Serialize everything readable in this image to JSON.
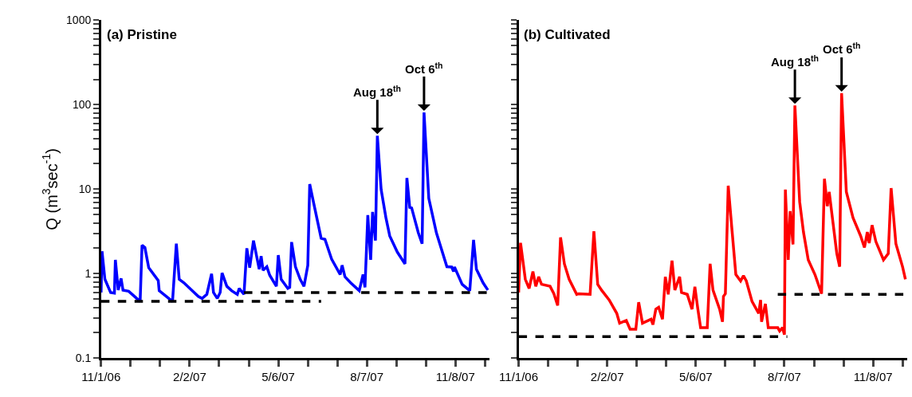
{
  "chart_data": [
    {
      "type": "line",
      "title": "(a) Pristine",
      "ylabel": "Q (m$^{3}$sec$^{-1}$)",
      "log": "y",
      "marker": "none",
      "xlim": [
        "2006-11-01",
        "2007-12-14"
      ],
      "ylim": [
        0.1,
        1000
      ],
      "xticks": [
        {
          "value": "2006-11-01",
          "label": "11/1/06"
        },
        {
          "value": "2006-12-02",
          "label": null
        },
        {
          "value": "2007-01-02",
          "label": null
        },
        {
          "value": "2007-02-02",
          "label": "2/2/07"
        },
        {
          "value": "2007-03-05",
          "label": null
        },
        {
          "value": "2007-04-05",
          "label": null
        },
        {
          "value": "2007-05-06",
          "label": "5/6/07"
        },
        {
          "value": "2007-06-06",
          "label": null
        },
        {
          "value": "2007-07-07",
          "label": null
        },
        {
          "value": "2007-08-07",
          "label": "8/7/07"
        },
        {
          "value": "2007-09-07",
          "label": null
        },
        {
          "value": "2007-10-08",
          "label": null
        },
        {
          "value": "2007-11-08",
          "label": "11/8/07"
        },
        {
          "value": "2007-12-09",
          "label": null
        }
      ],
      "yticks": [
        0.1,
        {
          "value": 0.2,
          "label": null
        },
        {
          "value": 0.3,
          "label": null
        },
        {
          "value": 0.4,
          "label": null
        },
        {
          "value": 0.5,
          "label": null
        },
        {
          "value": 0.6,
          "label": null
        },
        {
          "value": 0.7,
          "label": null
        },
        {
          "value": 0.8,
          "label": null
        },
        {
          "value": 0.9,
          "label": null
        },
        1,
        {
          "value": 2,
          "label": null
        },
        {
          "value": 3,
          "label": null
        },
        {
          "value": 4,
          "label": null
        },
        {
          "value": 5,
          "label": null
        },
        {
          "value": 6,
          "label": null
        },
        {
          "value": 7,
          "label": null
        },
        {
          "value": 8,
          "label": null
        },
        {
          "value": 9,
          "label": null
        },
        10,
        {
          "value": 20,
          "label": null
        },
        {
          "value": 30,
          "label": null
        },
        {
          "value": 40,
          "label": null
        },
        {
          "value": 50,
          "label": null
        },
        {
          "value": 60,
          "label": null
        },
        {
          "value": 70,
          "label": null
        },
        {
          "value": 80,
          "label": null
        },
        {
          "value": 90,
          "label": null
        },
        100,
        {
          "value": 200,
          "label": null
        },
        {
          "value": 300,
          "label": null
        },
        {
          "value": 400,
          "label": null
        },
        {
          "value": 500,
          "label": null
        },
        {
          "value": 600,
          "label": null
        },
        {
          "value": 700,
          "label": null
        },
        {
          "value": 800,
          "label": null
        },
        {
          "value": 900,
          "label": null
        },
        1000
      ],
      "annotations": [
        {
          "text": "Aug 18$^{th}$",
          "x": "2007-08-18",
          "y": 43
        },
        {
          "text": "Oct 6$^{th}$",
          "x": "2007-10-06",
          "y": 81
        }
      ],
      "series": [
        {
          "color": "#0000ff",
          "line_style": "solid",
          "x": [
            "2006-11-01",
            "2006-11-02",
            "2006-11-05",
            "2006-11-11",
            "2006-11-15",
            "2006-11-16",
            "2006-11-19",
            "2006-11-22",
            "2006-11-24",
            "2006-11-30",
            "2006-12-12",
            "2006-12-14",
            "2006-12-17",
            "2006-12-21",
            "2006-12-31",
            "2007-01-01",
            "2007-01-15",
            "2007-01-19",
            "2007-01-22",
            "2007-01-27",
            "2007-02-11",
            "2007-02-15",
            "2007-02-20",
            "2007-02-25",
            "2007-02-27",
            "2007-03-03",
            "2007-03-06",
            "2007-03-08",
            "2007-03-13",
            "2007-03-18",
            "2007-03-24",
            "2007-03-26",
            "2007-03-31",
            "2007-04-03",
            "2007-04-06",
            "2007-04-10",
            "2007-04-16",
            "2007-04-18",
            "2007-04-20",
            "2007-04-24",
            "2007-04-27",
            "2007-05-04",
            "2007-05-06",
            "2007-05-09",
            "2007-05-16",
            "2007-05-18",
            "2007-05-20",
            "2007-05-24",
            "2007-05-29",
            "2007-06-02",
            "2007-06-06",
            "2007-06-08",
            "2007-06-12",
            "2007-06-20",
            "2007-06-24",
            "2007-07-01",
            "2007-07-10",
            "2007-07-12",
            "2007-07-15",
            "2007-07-21",
            "2007-07-30",
            "2007-08-03",
            "2007-08-05",
            "2007-08-08",
            "2007-08-11",
            "2007-08-13",
            "2007-08-16",
            "2007-08-18",
            "2007-08-22",
            "2007-08-27",
            "2007-08-31",
            "2007-09-08",
            "2007-09-16",
            "2007-09-18",
            "2007-09-21",
            "2007-09-23",
            "2007-09-30",
            "2007-10-04",
            "2007-10-06",
            "2007-10-11",
            "2007-10-19",
            "2007-10-30",
            "2007-11-04",
            "2007-11-06",
            "2007-11-07",
            "2007-11-15",
            "2007-11-23",
            "2007-11-27",
            "2007-11-30",
            "2007-12-07",
            "2007-12-12"
          ],
          "values": [
            0.6,
            1.84,
            0.86,
            0.6,
            0.59,
            1.46,
            0.64,
            0.88,
            0.64,
            0.62,
            0.47,
            2.18,
            2.04,
            1.18,
            0.83,
            0.63,
            0.47,
            2.27,
            0.86,
            0.78,
            0.54,
            0.51,
            0.57,
            1.0,
            0.6,
            0.51,
            0.6,
            1.02,
            0.71,
            0.63,
            0.57,
            0.67,
            0.57,
            2.0,
            1.18,
            2.47,
            1.13,
            1.62,
            1.1,
            1.21,
            0.96,
            0.71,
            1.66,
            0.86,
            0.67,
            0.69,
            2.37,
            1.21,
            0.86,
            0.71,
            1.26,
            11.5,
            7.0,
            2.63,
            2.55,
            1.49,
            0.98,
            1.26,
            0.92,
            0.78,
            0.63,
            0.98,
            0.69,
            4.94,
            1.46,
            5.38,
            2.47,
            43,
            9.9,
            4.6,
            2.8,
            1.8,
            1.31,
            13.6,
            6.1,
            6.0,
            3.05,
            2.27,
            81,
            7.8,
            3.05,
            1.21,
            1.2,
            1.06,
            1.2,
            0.75,
            0.63,
            2.52,
            1.13,
            0.78,
            0.64
          ]
        },
        {
          "color": "#000000",
          "line_style": "dashed",
          "x": [
            "2006-11-01",
            "2007-06-20"
          ],
          "values": [
            0.47,
            0.47
          ]
        },
        {
          "color": "#000000",
          "line_style": "dashed",
          "x": [
            "2007-03-31",
            "2007-12-12"
          ],
          "values": [
            0.6,
            0.6
          ]
        }
      ]
    },
    {
      "type": "line",
      "title": "(b) Cultivated",
      "log": "y",
      "marker": "none",
      "tick_labels": "x",
      "xlim": [
        "2006-11-01",
        "2007-12-14"
      ],
      "ylim": [
        0.1,
        1000
      ],
      "xticks": [
        {
          "value": "2006-11-01",
          "label": "11/1/06"
        },
        {
          "value": "2006-12-02",
          "label": null
        },
        {
          "value": "2007-01-02",
          "label": null
        },
        {
          "value": "2007-02-02",
          "label": "2/2/07"
        },
        {
          "value": "2007-03-05",
          "label": null
        },
        {
          "value": "2007-04-05",
          "label": null
        },
        {
          "value": "2007-05-06",
          "label": "5/6/07"
        },
        {
          "value": "2007-06-06",
          "label": null
        },
        {
          "value": "2007-07-07",
          "label": null
        },
        {
          "value": "2007-08-07",
          "label": "8/7/07"
        },
        {
          "value": "2007-09-07",
          "label": null
        },
        {
          "value": "2007-10-08",
          "label": null
        },
        {
          "value": "2007-11-08",
          "label": "11/8/07"
        },
        {
          "value": "2007-12-09",
          "label": null
        }
      ],
      "yticks": [
        0.1,
        {
          "value": 0.2,
          "label": null
        },
        {
          "value": 0.3,
          "label": null
        },
        {
          "value": 0.4,
          "label": null
        },
        {
          "value": 0.5,
          "label": null
        },
        {
          "value": 0.6,
          "label": null
        },
        {
          "value": 0.7,
          "label": null
        },
        {
          "value": 0.8,
          "label": null
        },
        {
          "value": 0.9,
          "label": null
        },
        1,
        {
          "value": 2,
          "label": null
        },
        {
          "value": 3,
          "label": null
        },
        {
          "value": 4,
          "label": null
        },
        {
          "value": 5,
          "label": null
        },
        {
          "value": 6,
          "label": null
        },
        {
          "value": 7,
          "label": null
        },
        {
          "value": 8,
          "label": null
        },
        {
          "value": 9,
          "label": null
        },
        10,
        {
          "value": 20,
          "label": null
        },
        {
          "value": 30,
          "label": null
        },
        {
          "value": 40,
          "label": null
        },
        {
          "value": 50,
          "label": null
        },
        {
          "value": 60,
          "label": null
        },
        {
          "value": 70,
          "label": null
        },
        {
          "value": 80,
          "label": null
        },
        {
          "value": 90,
          "label": null
        },
        100,
        {
          "value": 200,
          "label": null
        },
        {
          "value": 300,
          "label": null
        },
        {
          "value": 400,
          "label": null
        },
        {
          "value": 500,
          "label": null
        },
        {
          "value": 600,
          "label": null
        },
        {
          "value": 700,
          "label": null
        },
        {
          "value": 800,
          "label": null
        },
        {
          "value": 900,
          "label": null
        },
        1000
      ],
      "annotations": [
        {
          "text": "Aug 18$^{th}$",
          "x": "2007-08-18",
          "y": 98
        },
        {
          "text": "Oct 6$^{th}$",
          "x": "2007-10-06",
          "y": 137
        }
      ],
      "series": [
        {
          "color": "#ff0000",
          "line_style": "solid",
          "x": [
            "2006-11-01",
            "2006-11-03",
            "2006-11-08",
            "2006-11-12",
            "2006-11-16",
            "2006-11-19",
            "2006-11-22",
            "2006-11-25",
            "2006-12-04",
            "2006-12-08",
            "2006-12-12",
            "2006-12-15",
            "2006-12-19",
            "2006-12-24",
            "2007-01-01",
            "2007-01-03",
            "2007-01-15",
            "2007-01-19",
            "2007-01-23",
            "2007-01-27",
            "2007-02-04",
            "2007-02-12",
            "2007-02-15",
            "2007-02-22",
            "2007-02-26",
            "2007-03-04",
            "2007-03-07",
            "2007-03-11",
            "2007-03-20",
            "2007-03-22",
            "2007-03-25",
            "2007-03-28",
            "2007-04-01",
            "2007-04-04",
            "2007-04-07",
            "2007-04-11",
            "2007-04-14",
            "2007-04-19",
            "2007-04-21",
            "2007-04-27",
            "2007-05-02",
            "2007-05-05",
            "2007-05-08",
            "2007-05-11",
            "2007-05-18",
            "2007-05-21",
            "2007-05-24",
            "2007-05-31",
            "2007-06-03",
            "2007-06-04",
            "2007-06-06",
            "2007-06-09",
            "2007-06-13",
            "2007-06-17",
            "2007-06-22",
            "2007-06-25",
            "2007-06-28",
            "2007-07-04",
            "2007-07-11",
            "2007-07-13",
            "2007-07-14",
            "2007-07-18",
            "2007-07-21",
            "2007-07-31",
            "2007-08-02",
            "2007-08-05",
            "2007-08-07",
            "2007-08-08",
            "2007-08-11",
            "2007-08-13",
            "2007-08-16",
            "2007-08-18",
            "2007-08-23",
            "2007-08-27",
            "2007-09-01",
            "2007-09-08",
            "2007-09-15",
            "2007-09-18",
            "2007-09-21",
            "2007-09-23",
            "2007-09-26",
            "2007-10-01",
            "2007-10-04",
            "2007-10-06",
            "2007-10-11",
            "2007-10-18",
            "2007-10-26",
            "2007-10-30",
            "2007-11-02",
            "2007-11-04",
            "2007-11-07",
            "2007-11-11",
            "2007-11-19",
            "2007-11-24",
            "2007-11-27",
            "2007-12-02",
            "2007-12-09",
            "2007-12-12"
          ],
          "values": [
            0.6,
            2.32,
            0.86,
            0.67,
            1.06,
            0.71,
            0.92,
            0.75,
            0.71,
            0.58,
            0.42,
            2.69,
            1.31,
            0.86,
            0.57,
            0.58,
            0.57,
            3.18,
            0.75,
            0.64,
            0.49,
            0.34,
            0.26,
            0.28,
            0.22,
            0.22,
            0.46,
            0.26,
            0.29,
            0.25,
            0.38,
            0.4,
            0.29,
            0.92,
            0.57,
            1.43,
            0.64,
            0.92,
            0.6,
            0.57,
            0.38,
            0.7,
            0.39,
            0.23,
            0.23,
            1.31,
            0.64,
            0.38,
            0.27,
            0.54,
            0.58,
            11.0,
            3.25,
            0.98,
            0.82,
            0.95,
            0.82,
            0.47,
            0.34,
            0.49,
            0.27,
            0.44,
            0.23,
            0.23,
            0.21,
            0.23,
            0.19,
            9.9,
            1.46,
            5.5,
            2.22,
            98,
            7.1,
            3.11,
            1.46,
            0.98,
            0.58,
            13.3,
            6.3,
            9.3,
            4.94,
            1.73,
            1.21,
            137,
            9.3,
            4.6,
            2.8,
            2.04,
            3.11,
            2.3,
            3.76,
            2.4,
            1.46,
            1.73,
            10.3,
            2.27,
            1.21,
            0.86
          ]
        },
        {
          "color": "#000000",
          "line_style": "dashed",
          "x": [
            "2006-11-01",
            "2007-08-10"
          ],
          "values": [
            0.18,
            0.18
          ]
        },
        {
          "color": "#000000",
          "line_style": "dashed",
          "x": [
            "2007-07-31",
            "2007-12-12"
          ],
          "values": [
            0.57,
            0.57
          ]
        }
      ]
    }
  ]
}
